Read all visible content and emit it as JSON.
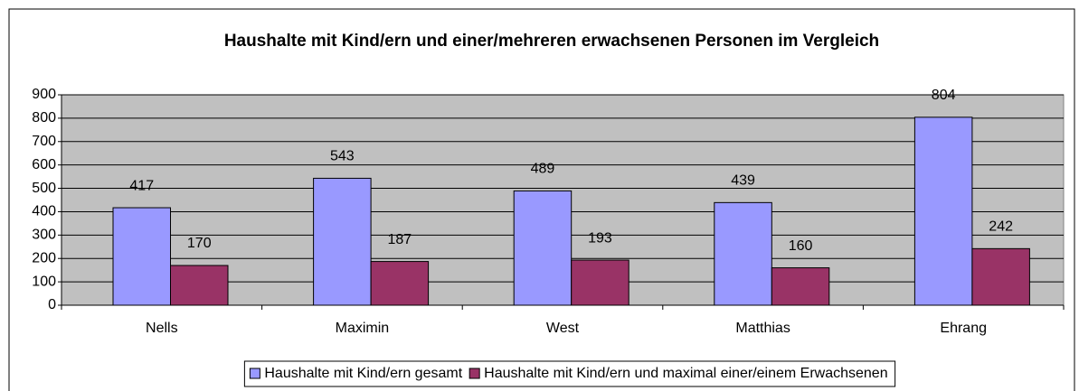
{
  "chart_data": {
    "type": "bar",
    "title": "Haushalte mit Kind/ern und einer/mehreren erwachsenen Personen im Vergleich",
    "categories": [
      "Nells",
      "Maximin",
      "West",
      "Matthias",
      "Ehrang"
    ],
    "series": [
      {
        "name": "Haushalte mit Kind/ern gesamt",
        "color": "#9999ff",
        "values": [
          417,
          543,
          489,
          439,
          804
        ]
      },
      {
        "name": "Haushalte mit Kind/ern und maximal einer/einem Erwachsenen",
        "color": "#993366",
        "values": [
          170,
          187,
          193,
          160,
          242
        ]
      }
    ],
    "ylim": [
      0,
      900
    ],
    "yticks": [
      0,
      100,
      200,
      300,
      400,
      500,
      600,
      700,
      800,
      900
    ],
    "grid": true,
    "legend": "bottom"
  }
}
